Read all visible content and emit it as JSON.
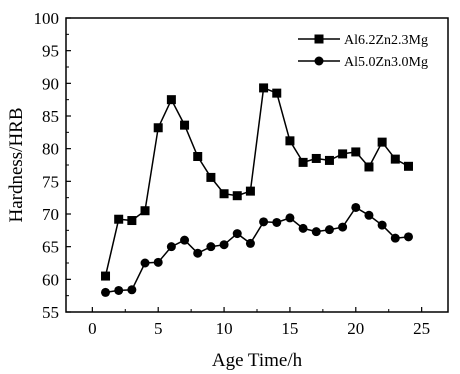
{
  "chart_data": {
    "type": "line",
    "xlabel": "Age Time/h",
    "ylabel": "Hardness/HRB",
    "xlim": [
      -2,
      27
    ],
    "ylim": [
      55,
      100
    ],
    "xticks": [
      0,
      5,
      10,
      15,
      20,
      25
    ],
    "yticks": [
      55,
      60,
      65,
      70,
      75,
      80,
      85,
      90,
      95,
      100
    ],
    "grid": false,
    "legend_position": "top-right",
    "series": [
      {
        "name": "Al6.2Zn2.3Mg",
        "marker": "square",
        "color": "#000000",
        "x": [
          1,
          2,
          3,
          4,
          5,
          6,
          7,
          8,
          9,
          10,
          11,
          12,
          13,
          14,
          15,
          16,
          17,
          18,
          19,
          20,
          21,
          22,
          23,
          24
        ],
        "y": [
          60.5,
          69.2,
          69.0,
          70.5,
          83.2,
          87.5,
          83.6,
          78.8,
          75.6,
          73.1,
          72.8,
          73.5,
          89.3,
          88.5,
          81.2,
          77.9,
          78.5,
          78.2,
          79.2,
          79.5,
          77.2,
          81.0,
          78.4,
          77.3
        ]
      },
      {
        "name": "Al5.0Zn3.0Mg",
        "marker": "circle",
        "color": "#000000",
        "x": [
          1,
          2,
          3,
          4,
          5,
          6,
          7,
          8,
          9,
          10,
          11,
          12,
          13,
          14,
          15,
          16,
          17,
          18,
          19,
          20,
          21,
          22,
          23,
          24
        ],
        "y": [
          58.0,
          58.3,
          58.4,
          62.5,
          62.6,
          65.0,
          66.0,
          64.0,
          65.0,
          65.3,
          67.0,
          65.5,
          68.8,
          68.7,
          69.4,
          67.8,
          67.3,
          67.6,
          68.0,
          71.0,
          69.8,
          68.3,
          66.3,
          66.5
        ]
      }
    ]
  }
}
